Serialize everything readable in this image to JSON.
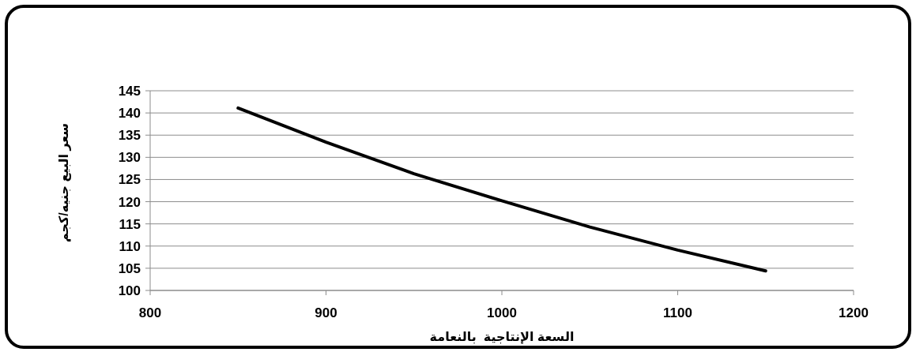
{
  "chart_data": {
    "type": "line",
    "xlabel": "السعة الإنتاجية  بالنعامة",
    "ylabel": "سعر البيع جنيه/كجم",
    "series": [
      {
        "color": "#000000",
        "x": [
          850,
          900,
          950,
          1000,
          1050,
          1100,
          1150
        ],
        "values": [
          141.1,
          133.4,
          126.3,
          120.2,
          114.3,
          109.1,
          104.4
        ]
      }
    ],
    "xlim": [
      800,
      1200
    ],
    "xticks": [
      800,
      900,
      1000,
      1100,
      1200
    ],
    "ylim": [
      100,
      145
    ],
    "yticks": [
      100,
      105,
      110,
      115,
      120,
      125,
      130,
      135,
      140,
      145
    ],
    "grid": "y",
    "marker": "none",
    "line_style": "solid"
  }
}
